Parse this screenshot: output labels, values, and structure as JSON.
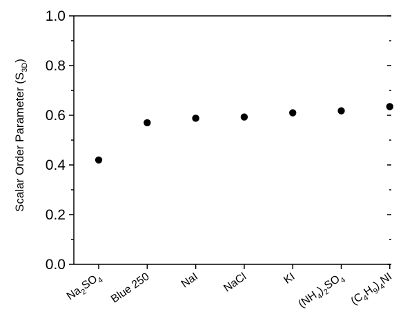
{
  "chart_data": {
    "type": "scatter",
    "title": "",
    "xlabel": "",
    "ylabel": {
      "main": "Scalar Order Parameter (S",
      "sub": "3D",
      "close": ")"
    },
    "ylim": [
      0.0,
      1.0
    ],
    "yticks": [
      "0.0",
      "0.2",
      "0.4",
      "0.6",
      "0.8",
      "1.0"
    ],
    "categories": [
      {
        "name": "Na2SO4",
        "parts": [
          [
            "Na",
            false
          ],
          [
            "2",
            true
          ],
          [
            "SO",
            false
          ],
          [
            "4",
            true
          ]
        ]
      },
      {
        "name": "Blue 250",
        "parts": [
          [
            "Blue 250",
            false
          ]
        ]
      },
      {
        "name": "NaI",
        "parts": [
          [
            "NaI",
            false
          ]
        ]
      },
      {
        "name": "NaCl",
        "parts": [
          [
            "NaCl",
            false
          ]
        ]
      },
      {
        "name": "KI",
        "parts": [
          [
            "KI",
            false
          ]
        ]
      },
      {
        "name": "(NH4)2SO4",
        "parts": [
          [
            "(NH",
            false
          ],
          [
            "4",
            true
          ],
          [
            ")",
            false
          ],
          [
            "2",
            true
          ],
          [
            "SO",
            false
          ],
          [
            "4",
            true
          ]
        ]
      },
      {
        "name": "(C4H9)4NI",
        "parts": [
          [
            "(C",
            false
          ],
          [
            "4",
            true
          ],
          [
            "H",
            false
          ],
          [
            "9",
            true
          ],
          [
            ")",
            false
          ],
          [
            "4",
            true
          ],
          [
            "NI",
            false
          ]
        ]
      }
    ],
    "values": [
      0.42,
      0.57,
      0.588,
      0.593,
      0.61,
      0.618,
      0.635
    ],
    "grid": false,
    "legend": "none",
    "marker_color": "#000000"
  }
}
